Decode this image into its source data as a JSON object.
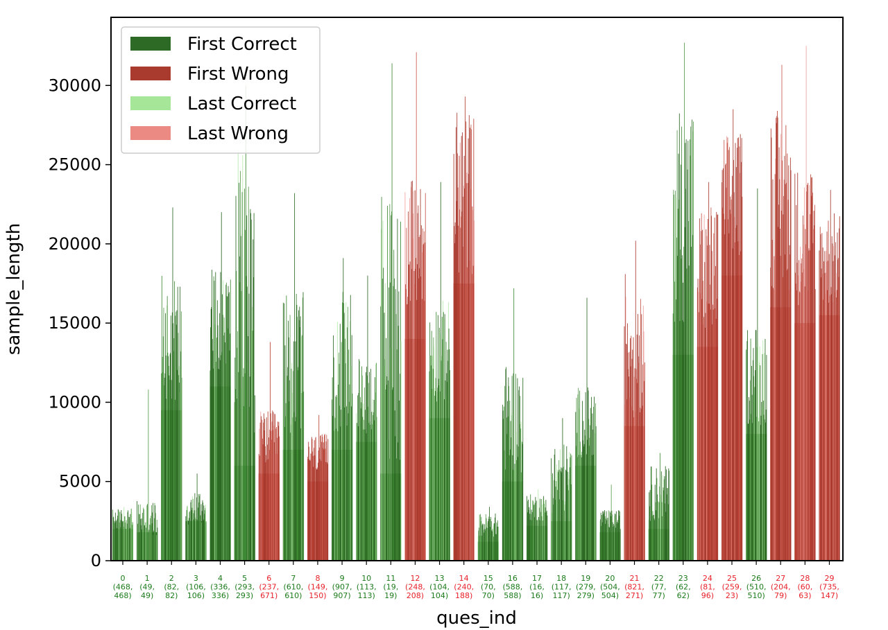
{
  "chart_data": {
    "type": "bar",
    "xlabel": "ques_ind",
    "ylabel": "sample_length",
    "ylim": [
      0,
      34300
    ],
    "yticks": [
      0,
      5000,
      10000,
      15000,
      20000,
      25000,
      30000
    ],
    "legend_position": "top-left",
    "legend": [
      {
        "name": "First Correct",
        "color": "#2d6a25"
      },
      {
        "name": "First Wrong",
        "color": "#a83a2e"
      },
      {
        "name": "Last Correct",
        "color": "#a6e698"
      },
      {
        "name": "Last Wrong",
        "color": "#ea8a83"
      }
    ],
    "colors": {
      "correct_label": "#1a7a1a",
      "wrong_label": "#e8202a"
    },
    "categories": [
      {
        "index": "0",
        "line1": "(468,",
        "line2": "468)",
        "status": "correct",
        "base": 2000,
        "max": 3400,
        "lo": 2000,
        "hi": 3300
      },
      {
        "index": "1",
        "line1": "(49,",
        "line2": "49)",
        "status": "correct",
        "base": 1800,
        "max": 10800,
        "lo": 1500,
        "hi": 3800
      },
      {
        "index": "2",
        "line1": "(82,",
        "line2": "82)",
        "status": "correct",
        "base": 9500,
        "max": 22300,
        "lo": 10000,
        "hi": 18000
      },
      {
        "index": "3",
        "line1": "(106,",
        "line2": "106)",
        "status": "correct",
        "base": 2500,
        "max": 5500,
        "lo": 2200,
        "hi": 4500
      },
      {
        "index": "4",
        "line1": "(336,",
        "line2": "336)",
        "status": "correct",
        "base": 11000,
        "max": 22000,
        "lo": 12000,
        "hi": 18500
      },
      {
        "index": "5",
        "line1": "(293,",
        "line2": "293)",
        "status": "correct",
        "base": 6000,
        "max": 30000,
        "lo": 8000,
        "hi": 26000
      },
      {
        "index": "6",
        "line1": "(237,",
        "line2": "671)",
        "status": "wrong",
        "base": 5500,
        "max": 13800,
        "lo": 6000,
        "hi": 9500
      },
      {
        "index": "7",
        "line1": "(610,",
        "line2": "610)",
        "status": "correct",
        "base": 7000,
        "max": 23200,
        "lo": 8000,
        "hi": 17000
      },
      {
        "index": "8",
        "line1": "(149,",
        "line2": "150)",
        "status": "wrong",
        "base": 5000,
        "max": 9200,
        "lo": 5500,
        "hi": 8000
      },
      {
        "index": "9",
        "line1": "(907,",
        "line2": "907)",
        "status": "correct",
        "base": 7000,
        "max": 19100,
        "lo": 8000,
        "hi": 17000
      },
      {
        "index": "10",
        "line1": "(113,",
        "line2": "113)",
        "status": "correct",
        "base": 7500,
        "max": 18000,
        "lo": 8000,
        "hi": 12800
      },
      {
        "index": "11",
        "line1": "(19,",
        "line2": "19)",
        "status": "correct",
        "base": 5500,
        "max": 31400,
        "lo": 6000,
        "hi": 23500
      },
      {
        "index": "12",
        "line1": "(248,",
        "line2": "208)",
        "status": "wrong",
        "base": 14000,
        "max": 32100,
        "lo": 16000,
        "hi": 24000
      },
      {
        "index": "13",
        "line1": "(104,",
        "line2": "104)",
        "status": "correct",
        "base": 9000,
        "max": 23900,
        "lo": 10000,
        "hi": 16500
      },
      {
        "index": "14",
        "line1": "(240,",
        "line2": "188)",
        "status": "wrong",
        "base": 17500,
        "max": 29300,
        "lo": 18000,
        "hi": 28500
      },
      {
        "index": "15",
        "line1": "(70,",
        "line2": "70)",
        "status": "correct",
        "base": 1200,
        "max": 3400,
        "lo": 1500,
        "hi": 3000
      },
      {
        "index": "16",
        "line1": "(588,",
        "line2": "588)",
        "status": "correct",
        "base": 5000,
        "max": 17200,
        "lo": 5500,
        "hi": 12500
      },
      {
        "index": "17",
        "line1": "(16,",
        "line2": "16)",
        "status": "correct",
        "base": 2200,
        "max": 4500,
        "lo": 2500,
        "hi": 4200
      },
      {
        "index": "18",
        "line1": "(117,",
        "line2": "117)",
        "status": "correct",
        "base": 2500,
        "max": 9000,
        "lo": 3000,
        "hi": 7500
      },
      {
        "index": "19",
        "line1": "(279,",
        "line2": "279)",
        "status": "correct",
        "base": 6000,
        "max": 16600,
        "lo": 6500,
        "hi": 11000
      },
      {
        "index": "20",
        "line1": "(504,",
        "line2": "504)",
        "status": "correct",
        "base": 1800,
        "max": 4800,
        "lo": 2000,
        "hi": 3200
      },
      {
        "index": "21",
        "line1": "(821,",
        "line2": "271)",
        "status": "wrong",
        "base": 8500,
        "max": 20200,
        "lo": 9000,
        "hi": 18500
      },
      {
        "index": "22",
        "line1": "(77,",
        "line2": "77)",
        "status": "correct",
        "base": 2000,
        "max": 6800,
        "lo": 2500,
        "hi": 6000
      },
      {
        "index": "23",
        "line1": "(62,",
        "line2": "62)",
        "status": "correct",
        "base": 13000,
        "max": 32700,
        "lo": 15000,
        "hi": 29000
      },
      {
        "index": "24",
        "line1": "(81,",
        "line2": "96)",
        "status": "wrong",
        "base": 13500,
        "max": 23900,
        "lo": 14000,
        "hi": 22500
      },
      {
        "index": "25",
        "line1": "(259,",
        "line2": "23)",
        "status": "wrong",
        "base": 18000,
        "max": 28500,
        "lo": 19000,
        "hi": 27000
      },
      {
        "index": "26",
        "line1": "(510,",
        "line2": "510)",
        "status": "correct",
        "base": 8000,
        "max": 23500,
        "lo": 8500,
        "hi": 15000
      },
      {
        "index": "27",
        "line1": "(204,",
        "line2": "79)",
        "status": "wrong",
        "base": 16000,
        "max": 31300,
        "lo": 17000,
        "hi": 28500
      },
      {
        "index": "28",
        "line1": "(60,",
        "line2": "63)",
        "status": "wrong",
        "base": 15000,
        "max": 32500,
        "lo": 16000,
        "hi": 25000
      },
      {
        "index": "29",
        "line1": "(735,",
        "line2": "147)",
        "status": "wrong",
        "base": 15500,
        "max": 23400,
        "lo": 16000,
        "hi": 22000
      }
    ]
  }
}
